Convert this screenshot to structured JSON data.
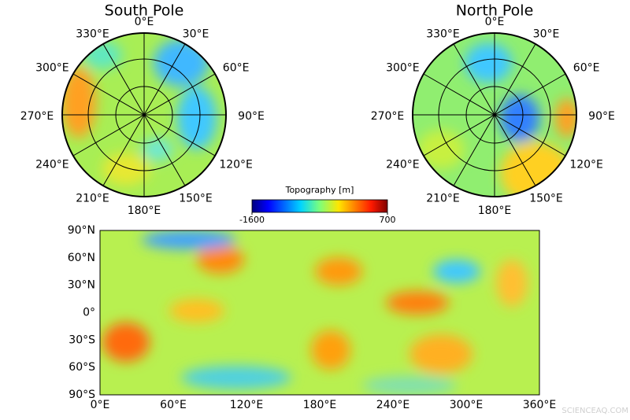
{
  "south_pole": {
    "title": "South Pole",
    "lon_labels": [
      "0°E",
      "30°E",
      "60°E",
      "90°E",
      "120°E",
      "150°E",
      "180°E",
      "210°E",
      "240°E",
      "270°E",
      "300°E",
      "330°E"
    ]
  },
  "north_pole": {
    "title": "North Pole",
    "lon_labels": [
      "0°E",
      "30°E",
      "60°E",
      "90°E",
      "120°E",
      "150°E",
      "180°E",
      "210°E",
      "240°E",
      "270°E",
      "300°E",
      "330°E"
    ]
  },
  "colorbar": {
    "label": "Topography [m]",
    "ticks": [
      -1600,
      700
    ]
  },
  "map": {
    "x_labels": [
      "0°E",
      "60°E",
      "120°E",
      "180°E",
      "240°E",
      "300°E",
      "360°E"
    ],
    "y_labels": [
      "90°N",
      "60°N",
      "30°N",
      "0°",
      "30°S",
      "60°S",
      "90°S"
    ]
  },
  "watermark": "SCIENCEAQ.COM"
}
